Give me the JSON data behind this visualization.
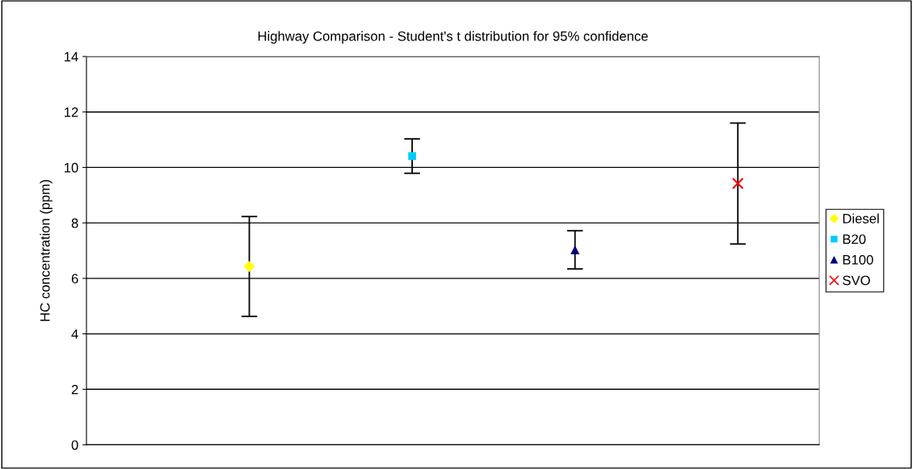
{
  "chart_data": {
    "type": "scatter",
    "title": "Highway Comparison - Student's t distribution for 95% confidence",
    "ylabel": "HC concentration (ppm)",
    "categories": [
      null,
      null,
      null,
      null
    ],
    "series": [
      {
        "name": "Diesel",
        "color": "#ffff00",
        "marker": "diamond",
        "values": [
          6.43,
          null,
          null,
          null
        ],
        "errors": [
          1.8,
          null,
          null,
          null
        ]
      },
      {
        "name": "B20",
        "color": "#00ccff",
        "marker": "square",
        "values": [
          null,
          10.41,
          null,
          null
        ],
        "errors": [
          null,
          0.62,
          null,
          null
        ]
      },
      {
        "name": "B100",
        "color": "#000080",
        "marker": "triangle",
        "values": [
          null,
          null,
          7.03,
          null
        ],
        "errors": [
          null,
          null,
          0.69,
          null
        ]
      },
      {
        "name": "SVO",
        "color": "#ff0000",
        "marker": "cross",
        "values": [
          null,
          null,
          null,
          9.42
        ],
        "errors": [
          null,
          null,
          null,
          2.18
        ]
      }
    ],
    "ylim": [
      0,
      14
    ],
    "yticks": [
      0,
      2,
      4,
      6,
      8,
      10,
      12,
      14
    ],
    "grid": "y",
    "legend": "right"
  }
}
